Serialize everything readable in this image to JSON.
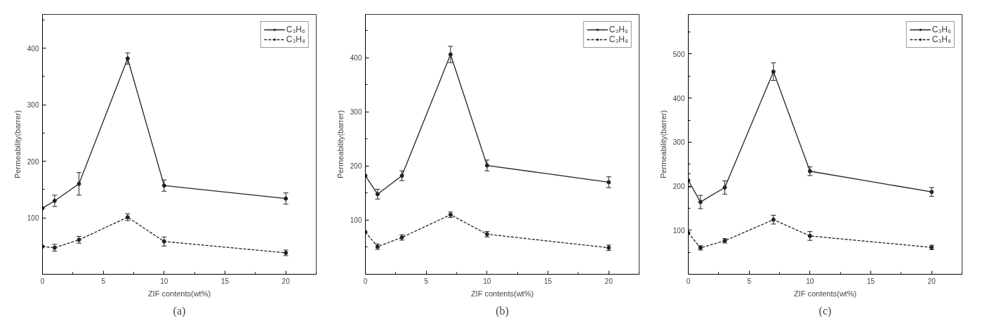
{
  "chart_data": [
    {
      "type": "line",
      "xlabel": "ZIF contents(wt%)",
      "ylabel": "Permeability(barrer)",
      "annotations": [
        "(a)"
      ],
      "x": [
        0,
        1,
        3,
        7,
        10,
        20
      ],
      "xlim": [
        0,
        22.5
      ],
      "xticks": [
        0,
        5,
        10,
        15,
        20
      ],
      "ylim": [
        0,
        460
      ],
      "yticks": [
        100,
        200,
        300,
        400
      ],
      "grid": false,
      "legend": "top right",
      "marker": "circle",
      "series": [
        {
          "name": "C₃H₆",
          "color": "#222222",
          "line_style": "solid",
          "values": [
            117,
            130,
            160,
            382,
            157,
            134
          ],
          "errors": [
            null,
            10,
            20,
            10,
            10,
            10
          ]
        },
        {
          "name": "C₃H₈",
          "color": "#222222",
          "line_style": "dashed",
          "values": [
            49,
            47,
            61,
            101,
            58,
            38
          ],
          "errors": [
            null,
            6,
            6,
            6,
            8,
            5
          ]
        }
      ]
    },
    {
      "type": "line",
      "xlabel": "ZIF contents(wt%)",
      "ylabel": "Permeability(barrer)",
      "annotations": [
        "(b)"
      ],
      "x": [
        0,
        1,
        3,
        7,
        10,
        20
      ],
      "xlim": [
        0,
        22.5
      ],
      "xticks": [
        0,
        5,
        10,
        15,
        20
      ],
      "ylim": [
        0,
        480
      ],
      "yticks": [
        100,
        200,
        300,
        400
      ],
      "grid": false,
      "legend": "top right",
      "marker": "circle",
      "series": [
        {
          "name": "C₃H₆",
          "color": "#222222",
          "line_style": "solid",
          "values": [
            182,
            148,
            182,
            406,
            201,
            170
          ],
          "errors": [
            null,
            9,
            9,
            15,
            10,
            10
          ]
        },
        {
          "name": "C₃H₈",
          "color": "#222222",
          "line_style": "dashed",
          "values": [
            78,
            51,
            68,
            110,
            74,
            49
          ],
          "errors": [
            null,
            5,
            5,
            5,
            5,
            5
          ]
        }
      ]
    },
    {
      "type": "line",
      "xlabel": "ZIF contents(wt%)",
      "ylabel": "Permeability(barrer)",
      "annotations": [
        "(c)"
      ],
      "x": [
        0,
        1,
        3,
        7,
        10,
        20
      ],
      "xlim": [
        0,
        22.5
      ],
      "xticks": [
        0,
        5,
        10,
        15,
        20
      ],
      "ylim": [
        0,
        590
      ],
      "yticks": [
        100,
        200,
        300,
        400,
        500
      ],
      "grid": false,
      "legend": "top right",
      "marker": "circle",
      "series": [
        {
          "name": "C₃H₆",
          "color": "#222222",
          "line_style": "solid",
          "values": [
            213,
            164,
            197,
            460,
            234,
            187
          ],
          "errors": [
            15,
            15,
            15,
            20,
            10,
            10
          ]
        },
        {
          "name": "C₃H₈",
          "color": "#222222",
          "line_style": "dashed",
          "values": [
            94,
            60,
            76,
            124,
            87,
            61
          ],
          "errors": [
            null,
            5,
            5,
            10,
            10,
            5
          ]
        }
      ]
    }
  ]
}
